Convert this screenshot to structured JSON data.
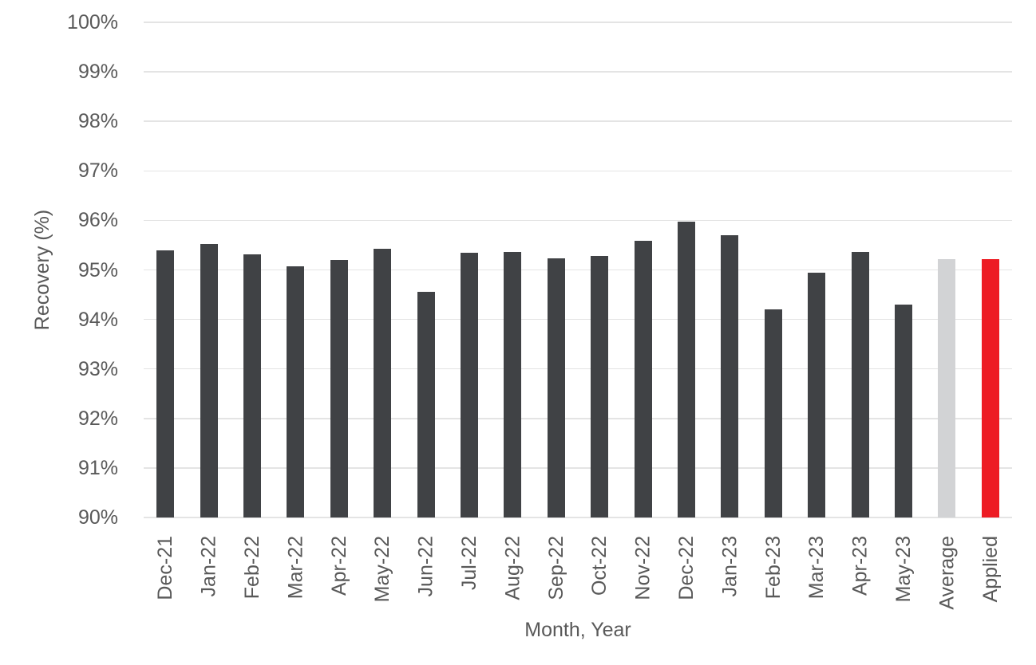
{
  "chart_data": {
    "type": "bar",
    "title": "",
    "xlabel": "Month, Year",
    "ylabel": "Recovery (%)",
    "ylim": [
      90,
      100
    ],
    "ytick_step": 1,
    "ytick_suffix": "%",
    "grid": true,
    "legend": "none",
    "categories": [
      "Dec-21",
      "Jan-22",
      "Feb-22",
      "Mar-22",
      "Apr-22",
      "May-22",
      "Jun-22",
      "Jul-22",
      "Aug-22",
      "Sep-22",
      "Oct-22",
      "Nov-22",
      "Dec-22",
      "Jan-23",
      "Feb-23",
      "Mar-23",
      "Apr-23",
      "May-23",
      "Average",
      "Applied"
    ],
    "values": [
      95.4,
      95.52,
      95.31,
      95.08,
      95.2,
      95.43,
      94.55,
      95.34,
      95.37,
      95.23,
      95.28,
      95.59,
      95.98,
      95.7,
      94.2,
      94.95,
      95.37,
      94.3,
      95.21,
      95.21
    ],
    "colors": {
      "month_bar": "#404245",
      "average_bar": "#D2D3D5",
      "applied_bar": "#ED1C24",
      "gridline": "#E4E4E4",
      "text": "#595959"
    }
  }
}
